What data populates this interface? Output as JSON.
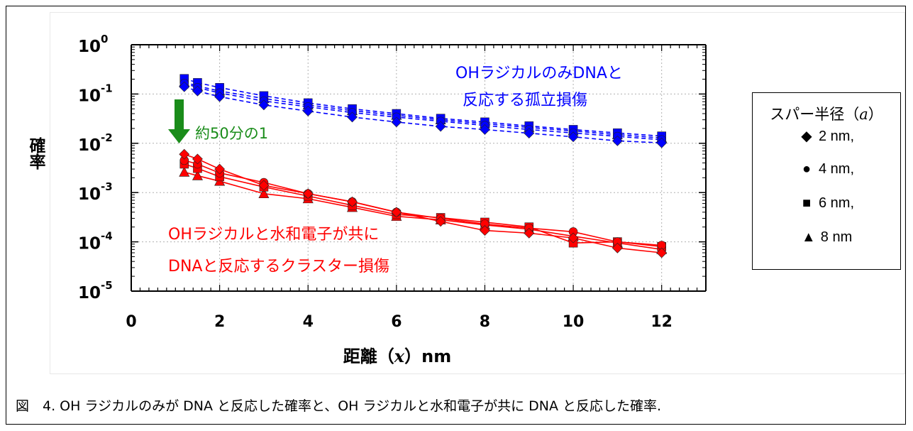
{
  "caption": "図　4. OH ラジカルのみが DNA と反応した確率と、OH ラジカルと水和電子が共に DNA と反応した確率.",
  "legend": {
    "title_prefix": "スパー半径（",
    "title_var": "a",
    "title_suffix": "）",
    "items": [
      {
        "label": "2 nm,",
        "marker": "diamond"
      },
      {
        "label": "4 nm,",
        "marker": "circle"
      },
      {
        "label": "6 nm,",
        "marker": "square"
      },
      {
        "label": "8 nm",
        "marker": "triangle"
      }
    ]
  },
  "annotations": {
    "blue_line1": "OHラジカルのみDNAと",
    "blue_line2": "反応する孤立損傷",
    "red_line1": "OHラジカルと水和電子が共に",
    "red_line2": "DNAと反応するクラスター損傷",
    "ratio": "約50分の1"
  },
  "colors": {
    "isolated": "#0000ff",
    "cluster": "#ff0000",
    "arrow": "#1a8c1a",
    "ratio_text": "#1a8c1a"
  },
  "chart_data": {
    "type": "line",
    "xlabel_prefix": "距離（",
    "xlabel_var": "x",
    "xlabel_suffix": "）nm",
    "ylabel": "確率",
    "xlim": [
      0,
      13
    ],
    "ylim_exp": [
      -5,
      0
    ],
    "yscale": "log",
    "x_ticks": [
      0,
      2,
      4,
      6,
      8,
      10,
      12
    ],
    "y_ticks": [
      {
        "base": "10",
        "exp": "0"
      },
      {
        "base": "10",
        "exp": "-1"
      },
      {
        "base": "10",
        "exp": "-2"
      },
      {
        "base": "10",
        "exp": "-3"
      },
      {
        "base": "10",
        "exp": "-4"
      },
      {
        "base": "10",
        "exp": "-5"
      }
    ],
    "x": [
      1.2,
      1.5,
      2,
      3,
      4,
      5,
      6,
      7,
      8,
      9,
      10,
      11,
      12
    ],
    "series": [
      {
        "group": "isolated",
        "marker": "diamond",
        "values": [
          0.14,
          0.115,
          0.088,
          0.06,
          0.045,
          0.034,
          0.027,
          0.022,
          0.019,
          0.016,
          0.0135,
          0.0112,
          0.0102
        ]
      },
      {
        "group": "isolated",
        "marker": "circle",
        "values": [
          0.165,
          0.135,
          0.105,
          0.072,
          0.055,
          0.042,
          0.034,
          0.028,
          0.023,
          0.019,
          0.0162,
          0.0138,
          0.0118
        ]
      },
      {
        "group": "isolated",
        "marker": "square",
        "values": [
          0.205,
          0.17,
          0.135,
          0.092,
          0.066,
          0.05,
          0.04,
          0.032,
          0.027,
          0.0225,
          0.019,
          0.0162,
          0.014
        ]
      },
      {
        "group": "isolated",
        "marker": "triangle",
        "values": [
          0.175,
          0.145,
          0.115,
          0.081,
          0.06,
          0.046,
          0.037,
          0.03,
          0.025,
          0.021,
          0.0178,
          0.015,
          0.0128
        ]
      },
      {
        "group": "cluster",
        "marker": "diamond",
        "values": [
          0.006,
          0.0048,
          0.003,
          0.0014,
          0.00095,
          0.00065,
          0.0004,
          0.00026,
          0.00017,
          0.00015,
          0.00012,
          7.5e-05,
          6e-05
        ]
      },
      {
        "group": "cluster",
        "marker": "circle",
        "values": [
          0.0045,
          0.0038,
          0.0025,
          0.0016,
          0.00095,
          0.00065,
          0.0004,
          0.0003,
          0.00023,
          0.00019,
          0.00016,
          0.0001,
          8.5e-05
        ]
      },
      {
        "group": "cluster",
        "marker": "square",
        "values": [
          0.0038,
          0.0031,
          0.0021,
          0.0013,
          0.00085,
          0.00055,
          0.00036,
          0.00031,
          0.00025,
          0.0002,
          9.5e-05,
          0.0001,
          8e-05
        ]
      },
      {
        "group": "cluster",
        "marker": "triangle",
        "values": [
          0.0026,
          0.0022,
          0.0017,
          0.00095,
          0.00075,
          0.0005,
          0.00033,
          0.00028,
          0.00022,
          0.00018,
          0.00013,
          9.5e-05,
          7e-05
        ]
      }
    ]
  }
}
